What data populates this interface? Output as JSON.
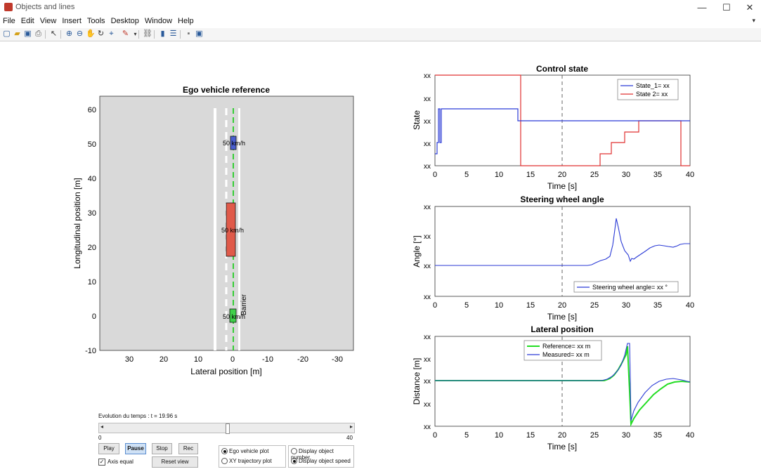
{
  "window": {
    "title": "Objects and lines",
    "controls": [
      "—",
      "☐",
      "✕"
    ]
  },
  "menu": [
    "File",
    "Edit",
    "View",
    "Insert",
    "Tools",
    "Desktop",
    "Window",
    "Help"
  ],
  "toolbar_icons": [
    "new-figure-icon",
    "open-icon",
    "save-icon",
    "print-icon",
    "pointer-icon",
    "zoom-in-icon",
    "zoom-out-icon",
    "pan-icon",
    "rotate-icon",
    "data-cursor-icon",
    "brush-icon",
    "link-plot-icon",
    "insert-colorbar-icon",
    "insert-legend-icon",
    "hide-plot-tools-icon",
    "show-plot-tools-icon"
  ],
  "ego_plot": {
    "title": "Ego vehicle reference",
    "xlabel": "Lateral position [m]",
    "ylabel": "Longitudinal position [m]",
    "xticks": [
      "30",
      "20",
      "10",
      "0",
      "-10",
      "-20",
      "-30"
    ],
    "yticks": [
      "60",
      "50",
      "40",
      "30",
      "20",
      "10",
      "0",
      "-10"
    ],
    "vehicles": [
      {
        "label": "50 km/h",
        "color": "#4a5fd0"
      },
      {
        "label": "50 km/h",
        "color": "#e05a4a"
      },
      {
        "label": "50 km/h",
        "color": "#3fd04a"
      }
    ],
    "barrier_label": "Barrier"
  },
  "plot1": {
    "title": "Control state",
    "ylabel": "State",
    "xlabel": "Time [s]",
    "yticks": [
      "xx",
      "xx",
      "xx",
      "xx",
      "xx"
    ],
    "xticks": [
      "0",
      "5",
      "10",
      "15",
      "20",
      "25",
      "30",
      "35",
      "40"
    ],
    "legend": [
      "State_1= xx",
      "State 2= xx"
    ]
  },
  "plot2": {
    "title": "Steering wheel angle",
    "ylabel": "Angle [°]",
    "xlabel": "Time [s]",
    "yticks": [
      "xx",
      "xx",
      "xx",
      "xx"
    ],
    "xticks": [
      "0",
      "5",
      "10",
      "15",
      "20",
      "25",
      "30",
      "35",
      "40"
    ],
    "legend": [
      "Steering wheel angle= xx °"
    ]
  },
  "plot3": {
    "title": "Lateral position",
    "ylabel": "Distance [m]",
    "xlabel": "Time [s]",
    "yticks": [
      "xx",
      "xx",
      "xx",
      "xx",
      "xx"
    ],
    "xticks": [
      "0",
      "5",
      "10",
      "15",
      "20",
      "25",
      "30",
      "35",
      "40"
    ],
    "legend": [
      "Reference= xx m",
      "Measured= xx m"
    ]
  },
  "time_control": {
    "label": "Evolution du temps : t = 19.96 s",
    "slider_min": "0",
    "slider_max": "40",
    "slider_fraction": 0.499
  },
  "buttons": {
    "play": "Play",
    "pause": "Pause",
    "stop": "Stop",
    "rec": "Rec",
    "reset": "Reset view"
  },
  "axis_equal": {
    "label": "Axis equal",
    "checked": true
  },
  "radios_plot": [
    {
      "label": "Ego vehicle plot",
      "on": true
    },
    {
      "label": "XY trajectory plot",
      "on": false
    }
  ],
  "radios_display": [
    {
      "label": "Display object number",
      "on": false
    },
    {
      "label": "Display object speed",
      "on": true
    }
  ]
}
